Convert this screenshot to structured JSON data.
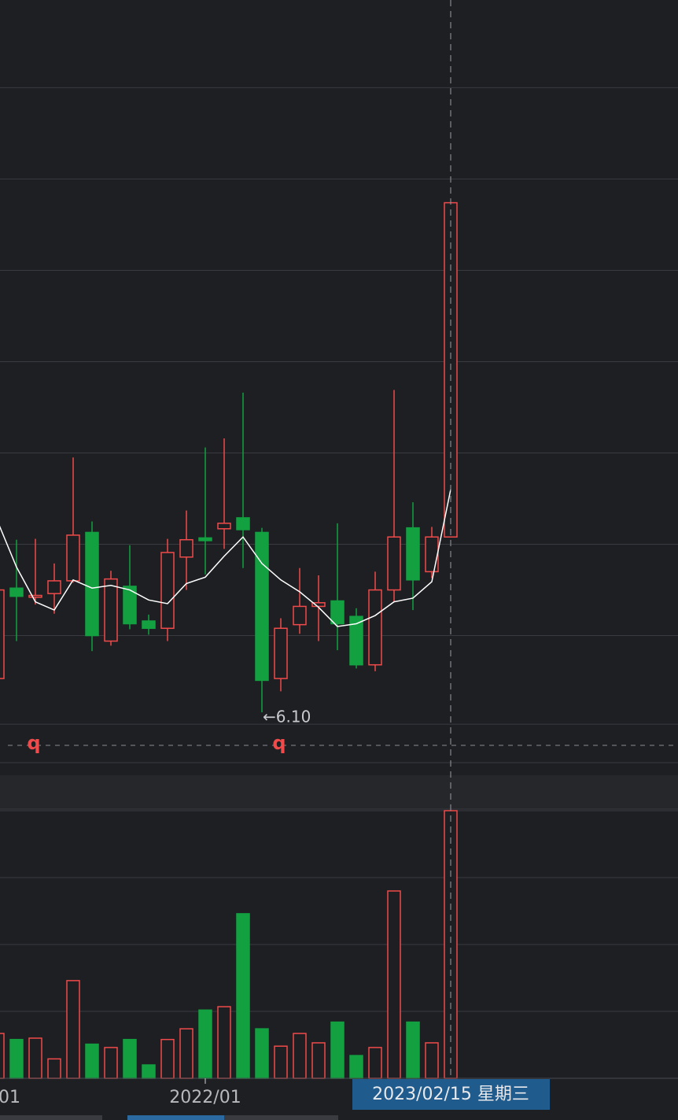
{
  "chart_data": {
    "type": "candlestick",
    "ylim": [
      5.54,
      13.9
    ],
    "yticks": [
      12.94,
      11.94,
      10.94,
      9.94,
      8.94,
      7.94,
      6.94,
      5.97
    ],
    "grid": true,
    "up_color": "#f04a4a",
    "down_color": "#12a040",
    "open": [
      6.47,
      7.46,
      7.36,
      7.4,
      7.54,
      8.07,
      6.88,
      7.48,
      7.1,
      7.02,
      7.8,
      8.01,
      8.11,
      8.23,
      8.07,
      6.47,
      7.06,
      7.26,
      7.32,
      7.15,
      6.62,
      7.44,
      8.12,
      7.64,
      8.02
    ],
    "high": [
      7.44,
      7.99,
      8.0,
      7.73,
      8.89,
      8.19,
      7.65,
      7.93,
      7.17,
      8.0,
      8.31,
      9.0,
      9.1,
      9.6,
      8.12,
      7.13,
      7.68,
      7.6,
      8.17,
      7.24,
      7.64,
      9.63,
      8.4,
      8.13,
      11.68
    ],
    "low": [
      6.47,
      6.88,
      7.28,
      7.18,
      7.52,
      6.77,
      6.83,
      7.01,
      6.95,
      6.88,
      7.44,
      7.61,
      7.89,
      7.68,
      6.1,
      6.33,
      6.96,
      6.88,
      6.78,
      6.58,
      6.55,
      7.31,
      7.22,
      7.57,
      8.02
    ],
    "close": [
      7.44,
      7.37,
      7.38,
      7.54,
      8.04,
      6.94,
      7.56,
      7.07,
      7.02,
      7.85,
      7.99,
      7.98,
      8.17,
      8.1,
      6.45,
      7.02,
      7.26,
      7.3,
      7.07,
      6.62,
      7.44,
      8.02,
      7.55,
      8.02,
      11.68
    ],
    "ma_values": [
      8.19,
      7.69,
      7.31,
      7.22,
      7.55,
      7.46,
      7.49,
      7.44,
      7.33,
      7.29,
      7.51,
      7.58,
      7.81,
      8.02,
      7.73,
      7.55,
      7.42,
      7.25,
      7.04,
      7.07,
      7.16,
      7.31,
      7.35,
      7.53,
      8.54
    ],
    "ma_color": "#ffffff",
    "low_label": "←6.10",
    "markers": [
      "q",
      "q"
    ],
    "volume": {
      "values": [
        0.67,
        0.58,
        0.6,
        0.29,
        1.46,
        0.51,
        0.46,
        0.58,
        0.2,
        0.58,
        0.74,
        1.02,
        1.07,
        2.46,
        0.74,
        0.48,
        0.67,
        0.53,
        0.84,
        0.34,
        0.46,
        2.8,
        0.84,
        0.53,
        4.0
      ],
      "ylim": [
        0,
        4.0
      ],
      "yticks": [
        0,
        1,
        2,
        3,
        4
      ]
    },
    "x_labels": [
      "01",
      "2022/01"
    ],
    "crosshair_label": "2023/02/15 星期三"
  }
}
